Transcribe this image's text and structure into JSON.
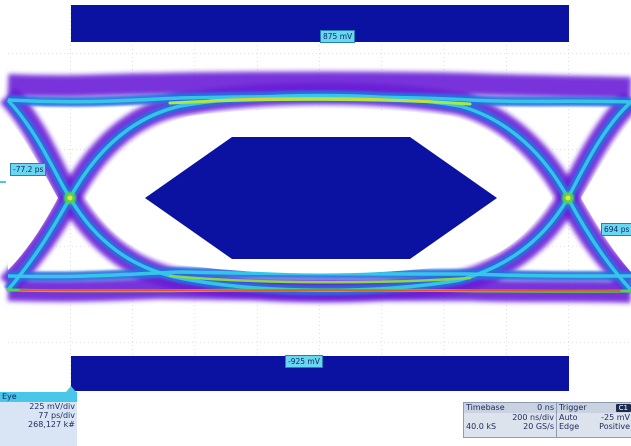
{
  "scope": {
    "top_marker": "875 mV",
    "bottom_marker": "-925 mV",
    "left_cursor": "-77.2 ps",
    "right_cursor": "694 ps"
  },
  "eye_panel": {
    "title": "Eye",
    "vertical_scale": "225 mV/div",
    "horizontal_scale": "77 ps/div",
    "count": "268,127 k#"
  },
  "timebase_panel": {
    "title": "Timebase",
    "delay": "0 ns",
    "time_per_div": "200 ns/div",
    "samples": "40.0 kS",
    "sample_rate": "20 GS/s"
  },
  "trigger_panel": {
    "title": "Trigger",
    "channel": "C1",
    "mode": "Auto",
    "level": "-25 mV",
    "type": "Edge",
    "slope": "Positive"
  },
  "colors": {
    "mask": "#0b11a0",
    "grid": "#c8c8c8",
    "eye_outer": "#6a1fd6",
    "eye_mid": "#2aa8e8",
    "eye_core": "#e04020"
  }
}
